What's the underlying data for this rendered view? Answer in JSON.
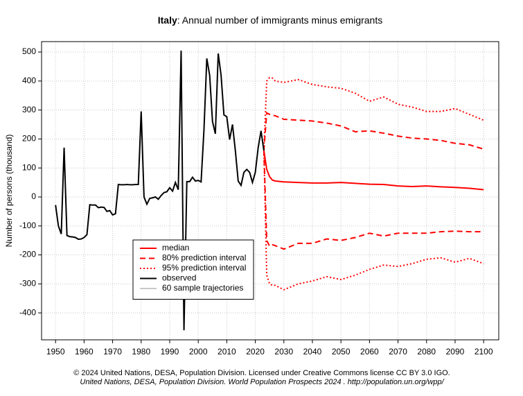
{
  "chart_data": {
    "type": "line",
    "title": [
      "Italy",
      ": Annual number of immigrants minus emigrants"
    ],
    "ylabel": "Number of persons (thousand)",
    "footer": [
      "© 2024 United Nations, DESA, Population Division. Licensed under Creative Commons license CC BY 3.0 IGO.",
      "United Nations, DESA, Population Division. World Population Prospects 2024 . http://population.un.org/wpp/"
    ],
    "xlim": [
      1945.1,
      2105.3
    ],
    "ylim": [
      -493,
      536
    ],
    "xticks": [
      1950,
      1960,
      1970,
      1980,
      1990,
      2000,
      2010,
      2020,
      2030,
      2040,
      2050,
      2060,
      2070,
      2080,
      2090,
      2100
    ],
    "yticks": [
      -400,
      -300,
      -200,
      -100,
      0,
      100,
      200,
      300,
      400,
      500
    ],
    "grid": true,
    "legend": "bottom-left",
    "legend_extra": {
      "name": "60 sample trajectories",
      "color": "#c8c8c8"
    },
    "series": [
      {
        "name": "median",
        "color": "#ff0000",
        "dash": "solid",
        "x": [
          2023,
          2024,
          2025,
          2026,
          2027,
          2030,
          2035,
          2040,
          2045,
          2050,
          2055,
          2060,
          2065,
          2070,
          2075,
          2080,
          2085,
          2090,
          2095,
          2100
        ],
        "values": [
          160,
          95,
          70,
          58,
          55,
          52,
          50,
          48,
          48,
          50,
          47,
          44,
          43,
          38,
          36,
          38,
          35,
          33,
          30,
          25
        ]
      },
      {
        "name": "80% prediction interval",
        "color": "#ff0000",
        "dash": "dashed",
        "x": [
          2023,
          2024,
          2025,
          2026,
          2027,
          2030,
          2035,
          2040,
          2045,
          2050,
          2055,
          2060,
          2065,
          2070,
          2075,
          2080,
          2085,
          2090,
          2095,
          2100
        ],
        "values": [
          160,
          290,
          285,
          282,
          280,
          268,
          265,
          262,
          255,
          245,
          225,
          228,
          220,
          210,
          203,
          200,
          195,
          185,
          180,
          165
        ]
      },
      {
        "name": "",
        "color": "#ff0000",
        "dash": "dashed",
        "legend_skip": true,
        "x": [
          2023,
          2024,
          2025,
          2026,
          2027,
          2030,
          2035,
          2040,
          2045,
          2050,
          2055,
          2060,
          2065,
          2070,
          2075,
          2080,
          2085,
          2090,
          2095,
          2100
        ],
        "values": [
          160,
          -150,
          -170,
          -165,
          -168,
          -180,
          -160,
          -160,
          -145,
          -150,
          -140,
          -125,
          -135,
          -125,
          -125,
          -125,
          -120,
          -118,
          -120,
          -120
        ]
      },
      {
        "name": "95% prediction interval",
        "color": "#ff0000",
        "dash": "dotted",
        "x": [
          2023,
          2024,
          2025,
          2026,
          2027,
          2030,
          2035,
          2040,
          2045,
          2050,
          2055,
          2060,
          2065,
          2070,
          2075,
          2080,
          2085,
          2090,
          2095,
          2100
        ],
        "values": [
          160,
          400,
          412,
          410,
          400,
          395,
          405,
          388,
          380,
          375,
          358,
          330,
          345,
          320,
          310,
          295,
          295,
          305,
          285,
          265
        ]
      },
      {
        "name": "",
        "color": "#ff0000",
        "dash": "dotted",
        "legend_skip": true,
        "x": [
          2023,
          2024,
          2025,
          2026,
          2027,
          2030,
          2035,
          2040,
          2045,
          2050,
          2055,
          2060,
          2065,
          2070,
          2075,
          2080,
          2085,
          2090,
          2095,
          2100
        ],
        "values": [
          160,
          -270,
          -300,
          -305,
          -305,
          -320,
          -300,
          -290,
          -275,
          -285,
          -270,
          -250,
          -235,
          -240,
          -230,
          -215,
          -210,
          -225,
          -212,
          -230
        ]
      },
      {
        "name": "observed",
        "color": "#000000",
        "dash": "solid",
        "x": [
          1950,
          1951,
          1952,
          1953,
          1954,
          1955,
          1956,
          1957,
          1958,
          1959,
          1960,
          1961,
          1962,
          1963,
          1964,
          1965,
          1966,
          1967,
          1968,
          1969,
          1970,
          1971,
          1972,
          1973,
          1974,
          1975,
          1976,
          1977,
          1978,
          1979,
          1980,
          1981,
          1982,
          1983,
          1984,
          1985,
          1986,
          1987,
          1988,
          1989,
          1990,
          1991,
          1992,
          1993,
          1994,
          1995,
          1996,
          1997,
          1998,
          1999,
          2000,
          2001,
          2002,
          2003,
          2004,
          2005,
          2006,
          2007,
          2008,
          2009,
          2010,
          2011,
          2012,
          2013,
          2014,
          2015,
          2016,
          2017,
          2018,
          2019,
          2020,
          2021,
          2022,
          2023
        ],
        "values": [
          -28,
          -100,
          -128,
          170,
          -133,
          -137,
          -138,
          -140,
          -146,
          -145,
          -140,
          -130,
          -27,
          -28,
          -28,
          -37,
          -35,
          -36,
          -50,
          -47,
          -62,
          -58,
          43,
          42,
          42,
          43,
          42,
          42,
          43,
          43,
          295,
          0,
          -25,
          -5,
          -3,
          0,
          -8,
          5,
          15,
          18,
          32,
          20,
          50,
          25,
          505,
          -460,
          53,
          53,
          68,
          55,
          57,
          52,
          230,
          478,
          420,
          260,
          218,
          495,
          420,
          283,
          277,
          198,
          250,
          160,
          55,
          40,
          85,
          95,
          85,
          50,
          85,
          170,
          228,
          160
        ]
      }
    ]
  }
}
